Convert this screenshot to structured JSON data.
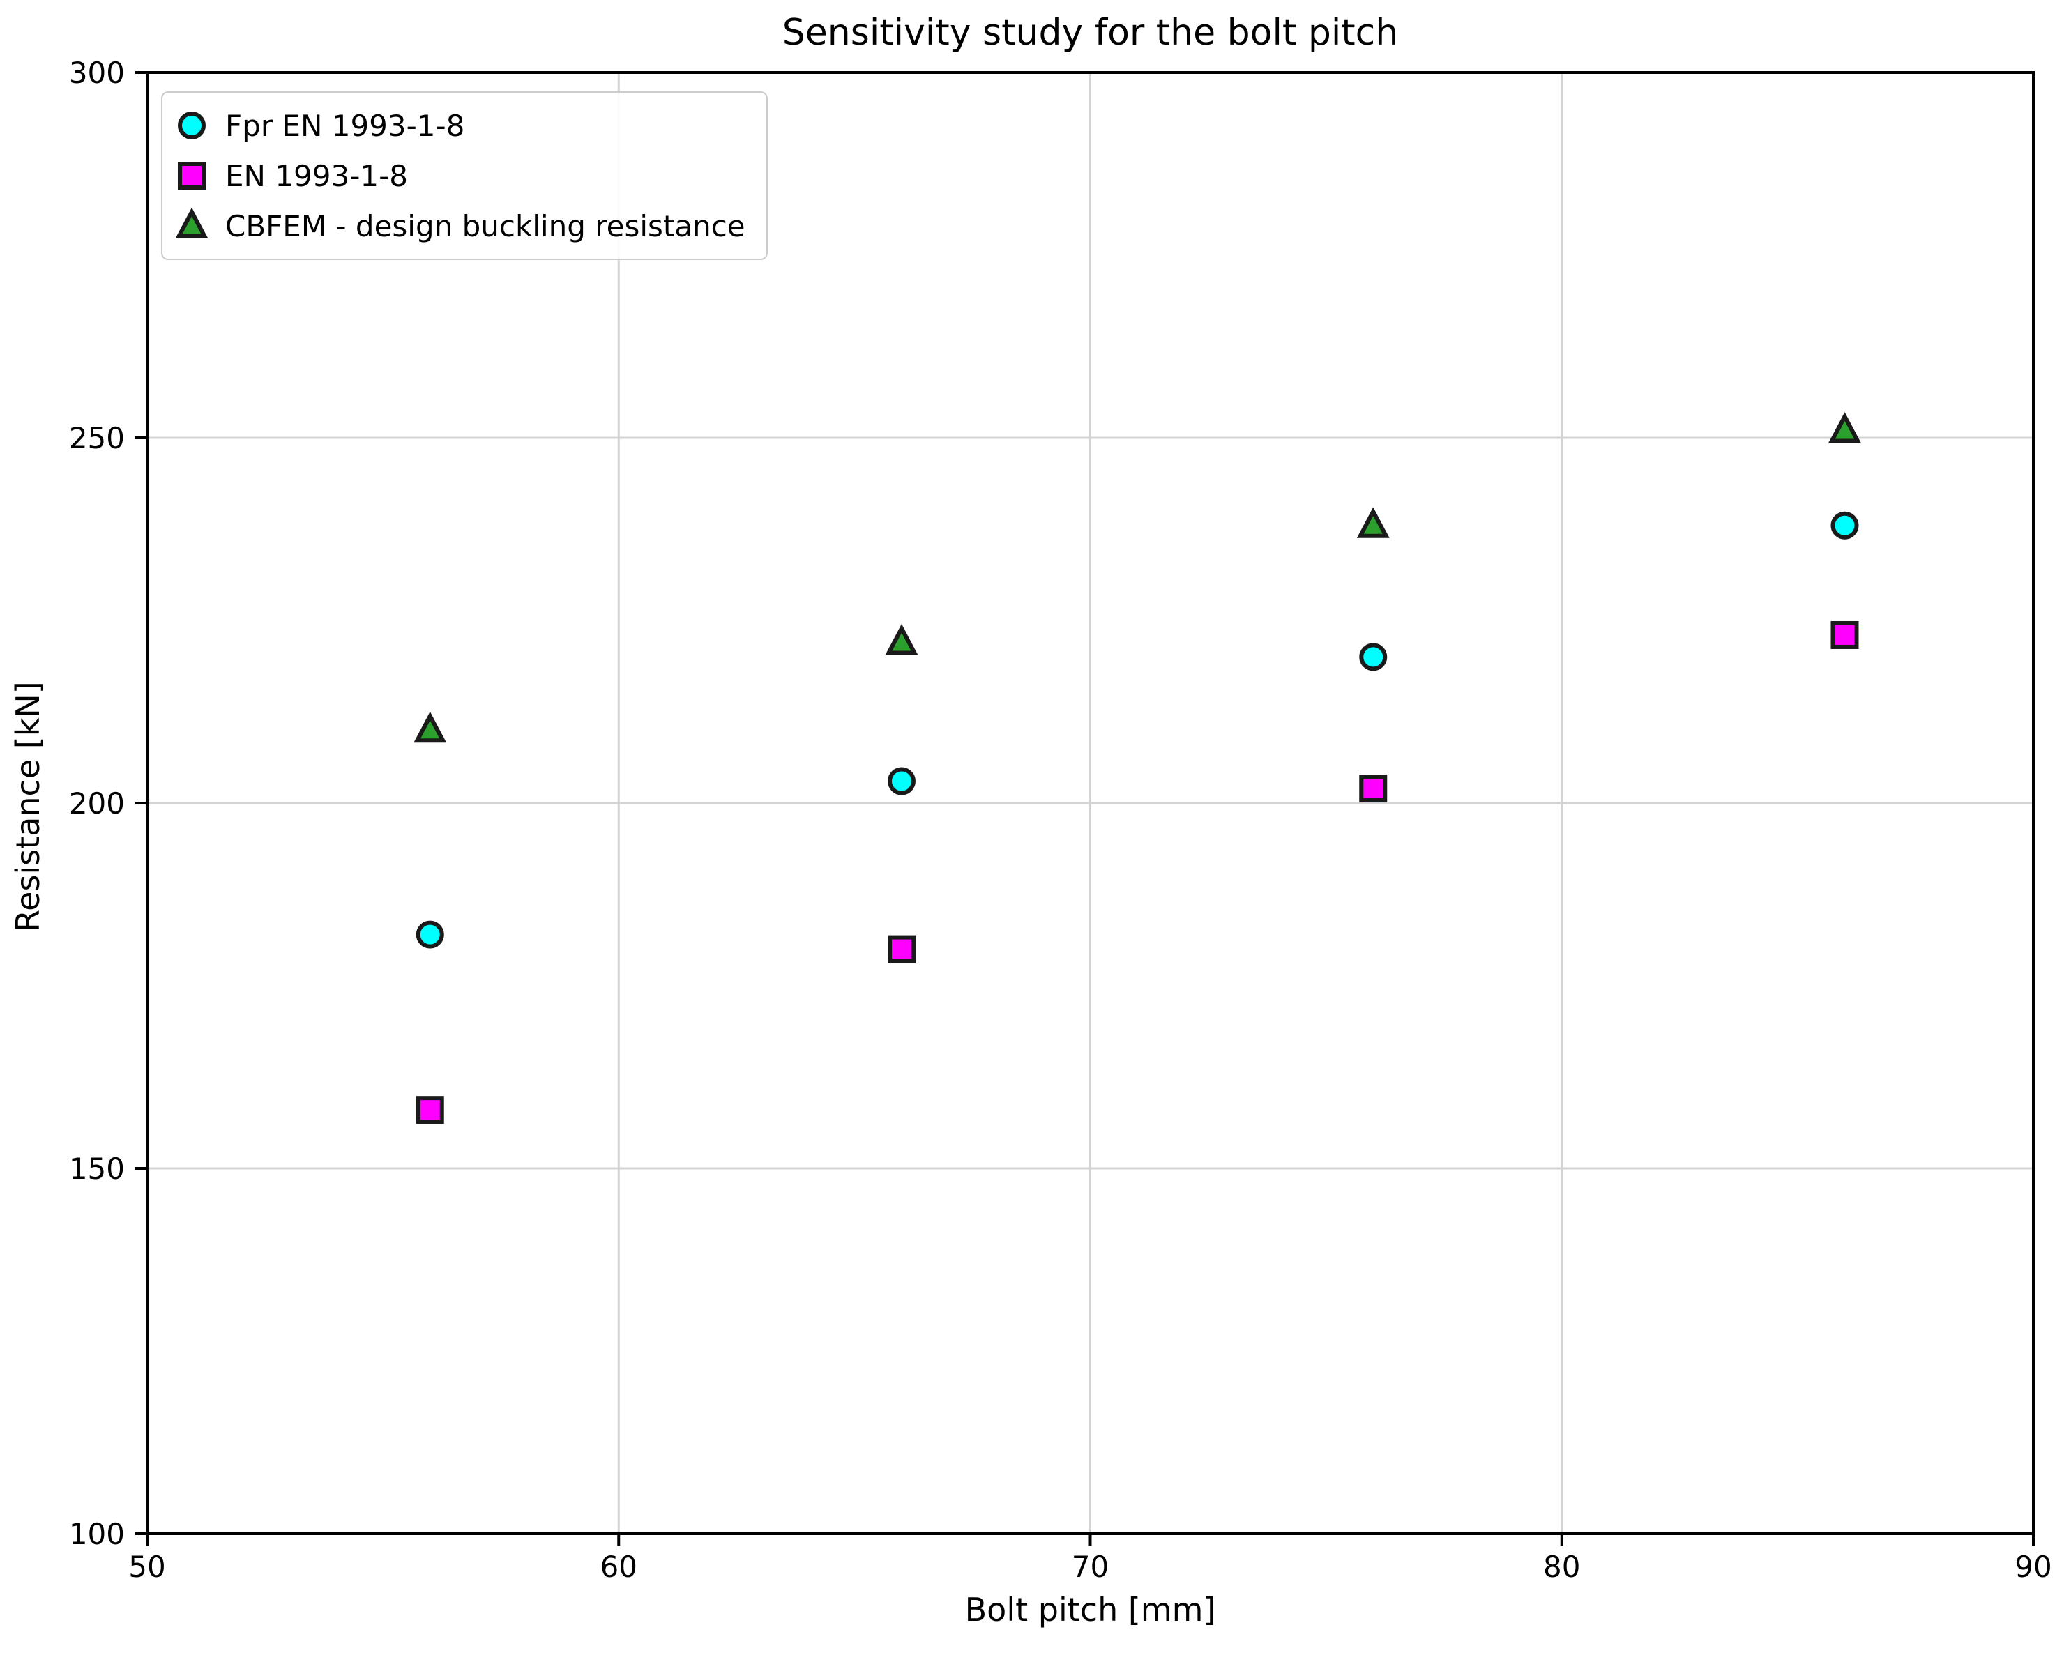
{
  "chart_data": {
    "type": "scatter",
    "title": "Sensitivity study for the bolt pitch",
    "xlabel": "Bolt pitch [mm]",
    "ylabel": "Resistance [kN]",
    "xlim": [
      50,
      90
    ],
    "ylim": [
      100,
      300
    ],
    "xticks": [
      50,
      60,
      70,
      80,
      90
    ],
    "yticks": [
      100,
      150,
      200,
      250,
      300
    ],
    "grid": true,
    "grid_color": "#d3d3d3",
    "legend_position": "upper-left",
    "marker_edge_color": "#1a1a1a",
    "x": [
      56,
      66,
      76,
      86
    ],
    "series": [
      {
        "name": "Fpr EN 1993-1-8",
        "marker": "circle",
        "color": "#00ffff",
        "values": [
          182,
          203,
          220,
          238
        ]
      },
      {
        "name": "EN 1993-1-8",
        "marker": "square",
        "color": "#ff00ff",
        "values": [
          158,
          180,
          202,
          223
        ]
      },
      {
        "name": "CBFEM - design buckling resistance",
        "marker": "triangle",
        "color": "#2ca02c",
        "values": [
          210,
          222,
          238,
          251
        ]
      }
    ]
  }
}
